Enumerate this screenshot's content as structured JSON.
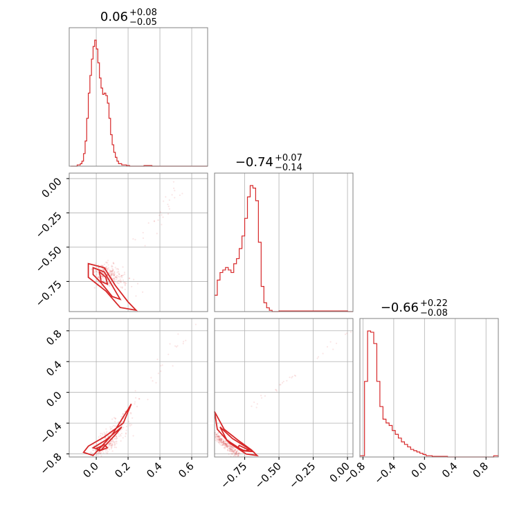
{
  "chart_data": {
    "type": "corner",
    "colors": {
      "hist": "#d62728",
      "contour": "#d62728",
      "grid": "#b0b0b0",
      "frame": "#808080"
    },
    "grid": true,
    "parameters": [
      {
        "title_main": "0.06",
        "title_plus": "+0.08",
        "title_minus": "−0.05",
        "range": [
          -0.17,
          0.7
        ],
        "ticks": [
          0.0,
          0.2,
          0.4,
          0.6
        ],
        "tick_labels": [
          "0.0",
          "0.2",
          "0.4",
          "0.6"
        ],
        "hist_x": [
          -0.16,
          -0.12,
          -0.1,
          -0.09,
          -0.08,
          -0.07,
          -0.06,
          -0.05,
          -0.04,
          -0.03,
          -0.02,
          -0.01,
          0.0,
          0.01,
          0.02,
          0.03,
          0.04,
          0.05,
          0.06,
          0.07,
          0.08,
          0.09,
          0.1,
          0.11,
          0.12,
          0.13,
          0.14,
          0.15,
          0.16,
          0.17,
          0.18,
          0.19,
          0.2,
          0.21,
          0.22,
          0.25,
          0.3,
          0.35,
          0.4,
          0.45,
          0.5,
          0.55,
          0.6,
          0.65,
          0.7
        ],
        "hist_y": [
          0.0,
          0.01,
          0.02,
          0.04,
          0.1,
          0.2,
          0.38,
          0.58,
          0.72,
          0.85,
          0.95,
          1.0,
          0.93,
          0.82,
          0.7,
          0.62,
          0.57,
          0.58,
          0.56,
          0.5,
          0.38,
          0.25,
          0.17,
          0.11,
          0.07,
          0.04,
          0.02,
          0.02,
          0.01,
          0.01,
          0.01,
          0.005,
          0.005,
          0.0,
          0.0,
          0.0,
          0.005,
          0.0,
          0.0,
          0.0,
          0.0,
          0.0,
          0.0,
          0.0,
          0.0
        ]
      },
      {
        "title_main": "−0.74",
        "title_plus": "+0.07",
        "title_minus": "−0.14",
        "range": [
          -0.97,
          0.04
        ],
        "ticks": [
          -0.75,
          -0.5,
          -0.25,
          0.0
        ],
        "tick_labels": [
          "−0.75",
          "−0.50",
          "−0.25",
          "0.00"
        ],
        "hist_x": [
          -0.97,
          -0.95,
          -0.93,
          -0.91,
          -0.89,
          -0.87,
          -0.85,
          -0.83,
          -0.81,
          -0.79,
          -0.77,
          -0.75,
          -0.73,
          -0.71,
          -0.69,
          -0.67,
          -0.65,
          -0.63,
          -0.61,
          -0.59,
          -0.57,
          -0.55,
          -0.5,
          -0.4,
          -0.3,
          -0.2,
          -0.1,
          0.0
        ],
        "hist_y": [
          0.13,
          0.25,
          0.31,
          0.33,
          0.35,
          0.33,
          0.31,
          0.38,
          0.42,
          0.5,
          0.6,
          0.74,
          0.91,
          1.0,
          0.98,
          0.88,
          0.55,
          0.2,
          0.07,
          0.03,
          0.01,
          0.0,
          0.005,
          0.005,
          0.005,
          0.005,
          0.005,
          0.0
        ]
      },
      {
        "title_main": "−0.66",
        "title_plus": "+0.22",
        "title_minus": "−0.08",
        "range": [
          -0.84,
          0.96
        ],
        "ticks": [
          -0.8,
          -0.4,
          0.0,
          0.4,
          0.8
        ],
        "tick_labels": [
          "−0.8",
          "−0.4",
          "0.0",
          "0.4",
          "0.8"
        ],
        "hist_x": [
          -0.84,
          -0.78,
          -0.74,
          -0.7,
          -0.66,
          -0.62,
          -0.58,
          -0.54,
          -0.5,
          -0.46,
          -0.42,
          -0.38,
          -0.34,
          -0.3,
          -0.26,
          -0.22,
          -0.18,
          -0.14,
          -0.1,
          -0.06,
          -0.02,
          0.02,
          0.1,
          0.3,
          0.5,
          0.7,
          0.9,
          0.96
        ],
        "hist_y": [
          0.01,
          0.6,
          1.0,
          0.99,
          0.9,
          0.6,
          0.4,
          0.3,
          0.27,
          0.25,
          0.21,
          0.18,
          0.15,
          0.12,
          0.1,
          0.08,
          0.06,
          0.05,
          0.04,
          0.03,
          0.02,
          0.01,
          0.005,
          0.0,
          0.0,
          0.0,
          0.01,
          0.0
        ]
      }
    ]
  }
}
